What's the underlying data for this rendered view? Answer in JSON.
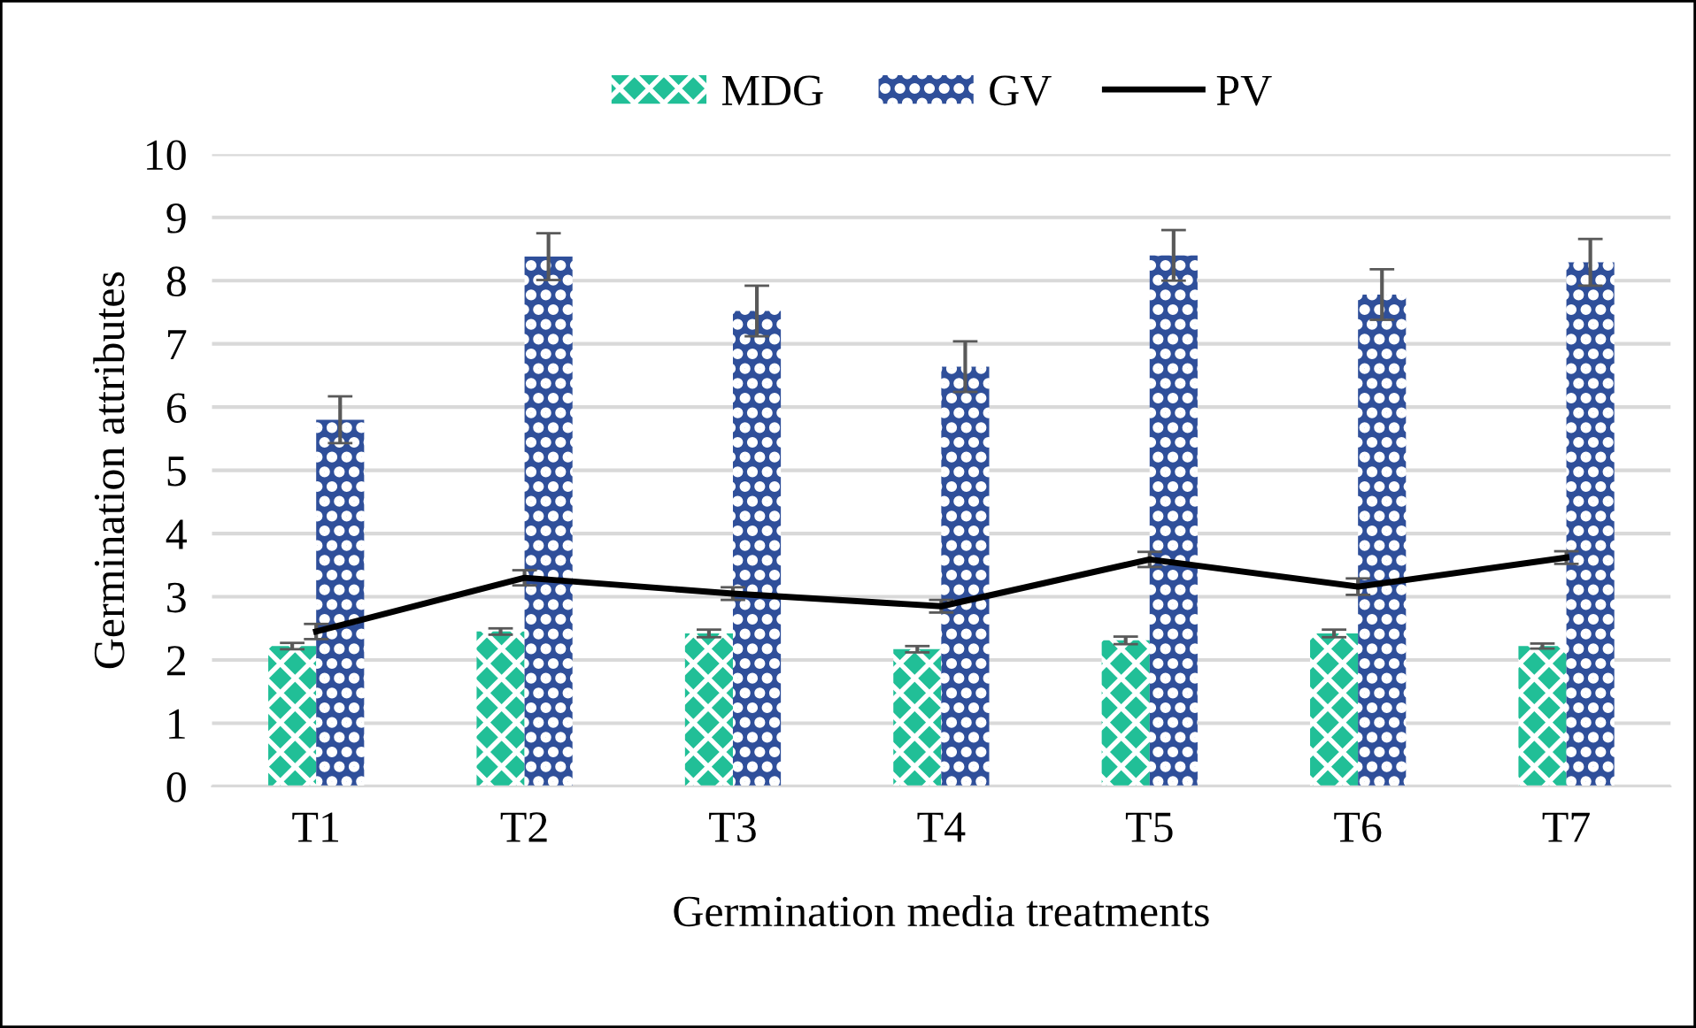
{
  "chart_data": {
    "type": "bar",
    "xlabel": "Germination media treatments",
    "ylabel": "Germination attributes",
    "categories": [
      "T1",
      "T2",
      "T3",
      "T4",
      "T5",
      "T6",
      "T7"
    ],
    "series": [
      {
        "name": "MDG",
        "color": "#21bf97",
        "values": [
          2.22,
          2.45,
          2.42,
          2.17,
          2.31,
          2.42,
          2.22
        ],
        "errors": [
          0.05,
          0.05,
          0.06,
          0.05,
          0.06,
          0.06,
          0.04
        ]
      },
      {
        "name": "GV",
        "color": "#2f4f9a",
        "values": [
          5.8,
          8.38,
          7.52,
          6.64,
          8.4,
          7.78,
          8.29
        ],
        "errors": [
          0.37,
          0.37,
          0.4,
          0.4,
          0.4,
          0.4,
          0.37
        ]
      },
      {
        "name": "PV",
        "type": "line",
        "color": "#000000",
        "values": [
          2.45,
          3.3,
          3.05,
          2.85,
          3.59,
          3.16,
          3.62
        ],
        "errors": [
          0.12,
          0.12,
          0.1,
          0.1,
          0.12,
          0.13,
          0.1
        ]
      }
    ],
    "ylim": [
      0,
      10
    ],
    "yticks": [
      0,
      1,
      2,
      3,
      4,
      5,
      6,
      7,
      8,
      9,
      10
    ],
    "grid": "y",
    "legend": "top",
    "marker": "none",
    "line_style": "solid"
  }
}
